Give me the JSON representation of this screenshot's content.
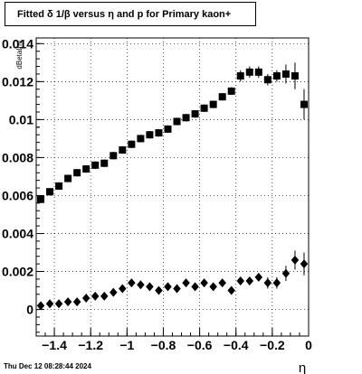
{
  "title": "Fitted δ 1/β versus η and p for Primary kaon+",
  "timestamp": "Thu Dec 12 08:28:44 2024",
  "chart_data": {
    "type": "scatter",
    "xlabel": "η",
    "ylabel": "dBetaInv",
    "xlim": [
      -1.5,
      0.0
    ],
    "ylim": [
      -0.0014,
      0.0143
    ],
    "grid": true,
    "x_ticks": [
      {
        "value": -1.4,
        "label": "−1.4"
      },
      {
        "value": -1.2,
        "label": "−1.2"
      },
      {
        "value": -1.0,
        "label": "−1"
      },
      {
        "value": -0.8,
        "label": "−0.8"
      },
      {
        "value": -0.6,
        "label": "−0.6"
      },
      {
        "value": -0.4,
        "label": "−0.4"
      },
      {
        "value": -0.2,
        "label": "−0.2"
      },
      {
        "value": 0.0,
        "label": "0"
      }
    ],
    "y_ticks": [
      {
        "value": 0.0,
        "label": "0"
      },
      {
        "value": 0.002,
        "label": "0.002"
      },
      {
        "value": 0.004,
        "label": "0.004"
      },
      {
        "value": 0.006,
        "label": "0.006"
      },
      {
        "value": 0.008,
        "label": "0.008"
      },
      {
        "value": 0.01,
        "label": "0.01"
      },
      {
        "value": 0.012,
        "label": "0.012"
      },
      {
        "value": 0.014,
        "label": "0.014"
      }
    ],
    "series": [
      {
        "marker": "square",
        "color": "#000000",
        "x": [
          -1.475,
          -1.425,
          -1.375,
          -1.325,
          -1.275,
          -1.225,
          -1.175,
          -1.125,
          -1.075,
          -1.025,
          -0.975,
          -0.925,
          -0.875,
          -0.825,
          -0.775,
          -0.725,
          -0.675,
          -0.625,
          -0.575,
          -0.525,
          -0.475,
          -0.425,
          -0.375,
          -0.325,
          -0.275,
          -0.225,
          -0.175,
          -0.125,
          -0.075,
          -0.025
        ],
        "y": [
          0.0058,
          0.0062,
          0.0065,
          0.0069,
          0.0072,
          0.0074,
          0.0076,
          0.0077,
          0.0081,
          0.0084,
          0.0087,
          0.009,
          0.0092,
          0.0093,
          0.0095,
          0.0099,
          0.0101,
          0.0103,
          0.0106,
          0.0108,
          0.0112,
          0.0115,
          0.0123,
          0.0125,
          0.0125,
          0.0121,
          0.0123,
          0.0124,
          0.0123,
          0.0108
        ],
        "yerr": [
          0.0002,
          0.0002,
          0.0002,
          0.0002,
          0.0002,
          0.0002,
          0.0002,
          0.0002,
          0.0002,
          0.0002,
          0.0002,
          0.0002,
          0.0002,
          0.0002,
          0.0002,
          0.0002,
          0.0002,
          0.0002,
          0.0002,
          0.0002,
          0.0002,
          0.0002,
          0.0003,
          0.0003,
          0.0003,
          0.0003,
          0.0003,
          0.0005,
          0.0007,
          0.0008
        ]
      },
      {
        "marker": "diamond",
        "color": "#000000",
        "x": [
          -1.475,
          -1.425,
          -1.375,
          -1.325,
          -1.275,
          -1.225,
          -1.175,
          -1.125,
          -1.075,
          -1.025,
          -0.975,
          -0.925,
          -0.875,
          -0.825,
          -0.775,
          -0.725,
          -0.675,
          -0.625,
          -0.575,
          -0.525,
          -0.475,
          -0.425,
          -0.375,
          -0.325,
          -0.275,
          -0.225,
          -0.175,
          -0.125,
          -0.075,
          -0.025
        ],
        "y": [
          0.0002,
          0.0003,
          0.0003,
          0.0004,
          0.0004,
          0.0006,
          0.0007,
          0.0007,
          0.0009,
          0.0011,
          0.0014,
          0.0013,
          0.0012,
          0.001,
          0.0012,
          0.0011,
          0.0014,
          0.0012,
          0.0014,
          0.0012,
          0.0014,
          0.001,
          0.0015,
          0.0015,
          0.0017,
          0.0014,
          0.0014,
          0.0019,
          0.0026,
          0.0024
        ],
        "yerr": [
          0.0001,
          0.0001,
          0.0001,
          0.0001,
          0.0001,
          0.0001,
          0.0001,
          0.0001,
          0.0001,
          0.0001,
          0.0001,
          0.0001,
          0.0001,
          0.0001,
          0.0001,
          0.0001,
          0.0001,
          0.0001,
          0.0001,
          0.0001,
          0.0002,
          0.0002,
          0.0002,
          0.0002,
          0.0002,
          0.0003,
          0.0003,
          0.0004,
          0.0005,
          0.0006
        ]
      }
    ]
  }
}
